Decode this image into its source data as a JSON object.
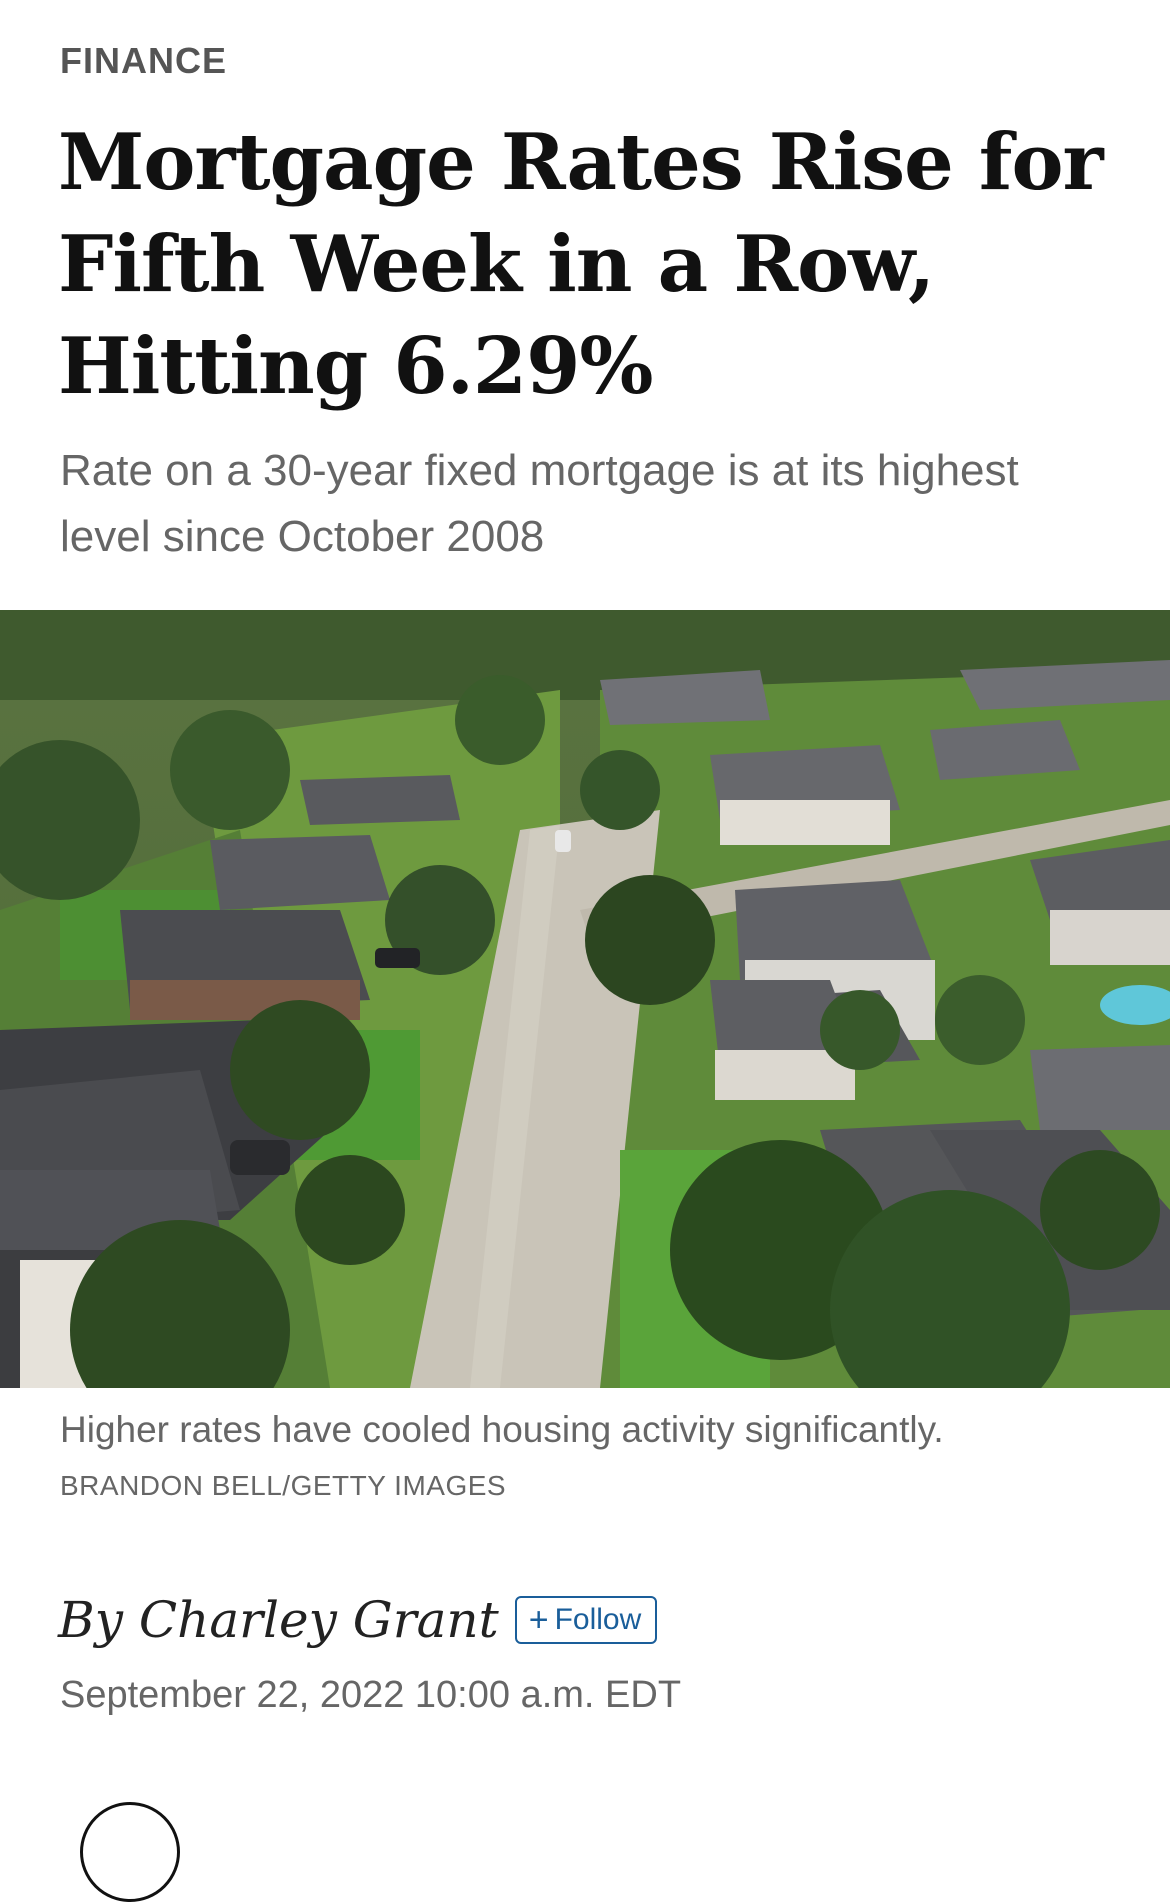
{
  "article": {
    "section": "FINANCE",
    "headline": "Mortgage Rates Rise for Fifth Week in a Row, Hitting 6.29%",
    "dek": "Rate on a 30-year fixed mortgage is at its highest level since October 2008",
    "image": {
      "caption": "Higher rates have cooled housing activity significantly.",
      "credit": "BRANDON BELL/GETTY IMAGES"
    },
    "byline": {
      "author": "By Charley Grant",
      "follow_label": "Follow",
      "follow_icon": "plus-icon"
    },
    "timestamp": "September 22, 2022 10:00 a.m. EDT"
  },
  "colors": {
    "text_primary": "#111111",
    "text_secondary": "#666666",
    "accent_blue": "#1a5e9a"
  }
}
